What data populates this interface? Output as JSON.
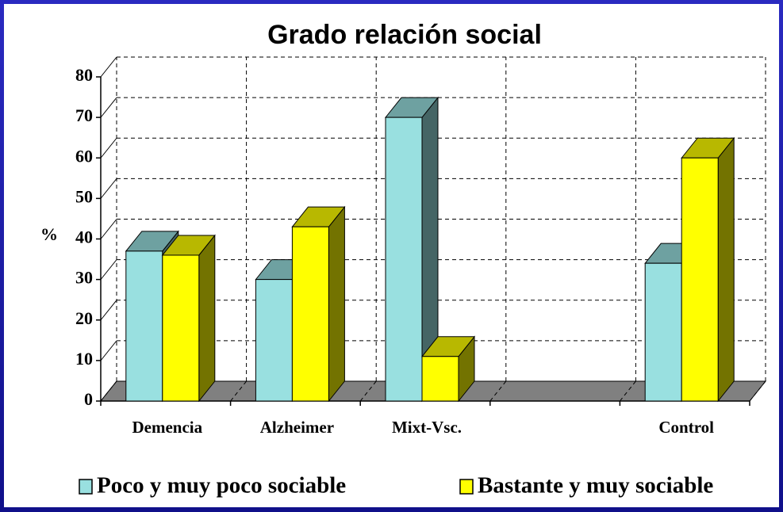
{
  "chart_data": {
    "type": "bar3d",
    "title": "Grado relación social",
    "ylabel": "%",
    "categories": [
      "Demencia",
      "Alzheimer",
      "Mixt-Vsc.",
      null,
      "Control"
    ],
    "series": [
      {
        "name": "Poco y muy poco sociable",
        "color": "#99e0e0",
        "values": [
          37,
          30,
          70,
          null,
          34
        ]
      },
      {
        "name": "Bastante y muy sociable",
        "color": "#ffff00",
        "values": [
          36,
          43,
          11,
          null,
          60
        ]
      }
    ],
    "ylim": [
      0,
      80
    ],
    "yticks": [
      0,
      10,
      20,
      30,
      40,
      50,
      60,
      70,
      80
    ],
    "grid": true,
    "legend": "bottom"
  }
}
